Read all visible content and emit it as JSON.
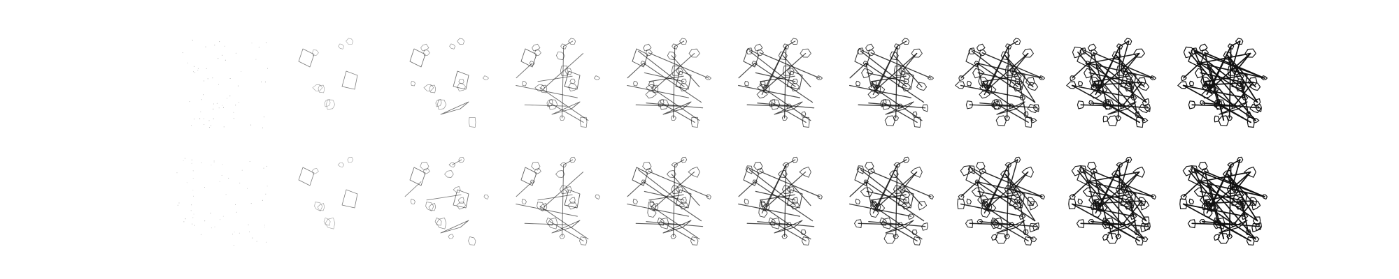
{
  "figure": {
    "background": "#ffffff",
    "ink_color": "#111111",
    "rows": [
      {
        "row_id": "top",
        "frames": [
          {
            "ink_density": 0.0
          },
          {
            "ink_density": 0.12
          },
          {
            "ink_density": 0.22
          },
          {
            "ink_density": 0.33
          },
          {
            "ink_density": 0.45
          },
          {
            "ink_density": 0.57
          },
          {
            "ink_density": 0.68
          },
          {
            "ink_density": 0.8
          },
          {
            "ink_density": 0.9
          },
          {
            "ink_density": 1.0
          }
        ]
      },
      {
        "row_id": "bottom",
        "frames": [
          {
            "ink_density": 0.04
          },
          {
            "ink_density": 0.12
          },
          {
            "ink_density": 0.24
          },
          {
            "ink_density": 0.35
          },
          {
            "ink_density": 0.47
          },
          {
            "ink_density": 0.58
          },
          {
            "ink_density": 0.7
          },
          {
            "ink_density": 0.82
          },
          {
            "ink_density": 0.92
          },
          {
            "ink_density": 1.0
          }
        ]
      }
    ]
  }
}
